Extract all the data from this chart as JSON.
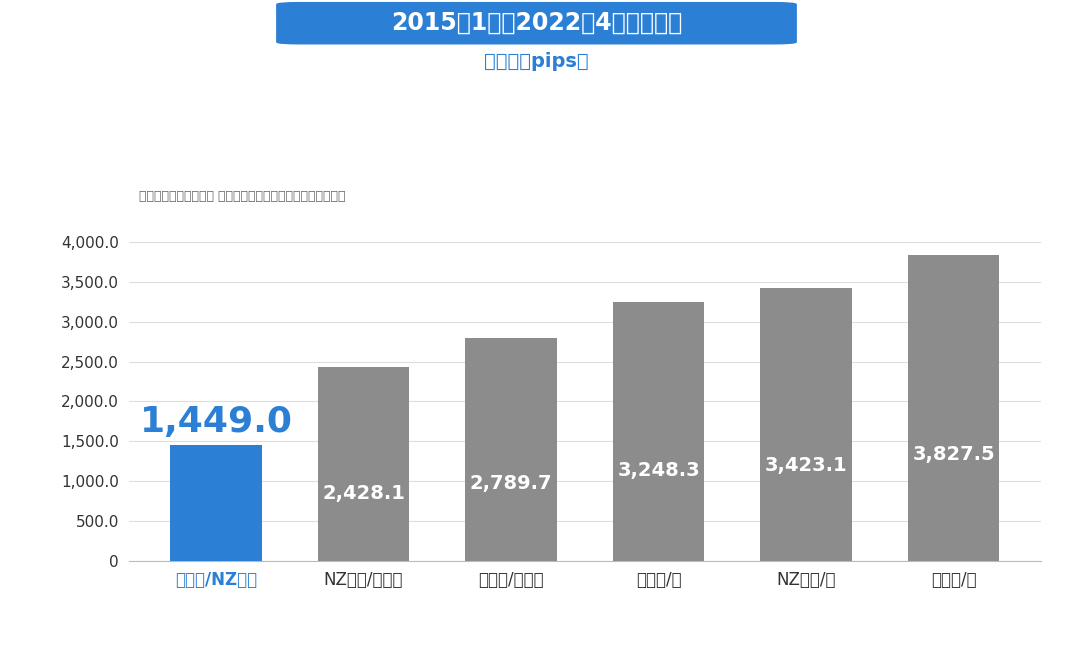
{
  "title_display": "2015年1月～2022年4月の高低差",
  "subtitle": "（単位：pips）",
  "source_note": "出所：マネースクエア ヒストリカルデータ、リフィニティブ",
  "categories": [
    "豪ドル/NZドル",
    "NZドル/米ドル",
    "豪ドル/米ドル",
    "米ドル/円",
    "NZドル/円",
    "豪ドル/円"
  ],
  "values": [
    1449.0,
    2428.1,
    2789.7,
    3248.3,
    3423.1,
    3827.5
  ],
  "bar_colors": [
    "#2b7fd4",
    "#8c8c8c",
    "#8c8c8c",
    "#8c8c8c",
    "#8c8c8c",
    "#8c8c8c"
  ],
  "highlight_index": 0,
  "ylim": [
    0,
    4200
  ],
  "yticks": [
    0,
    500.0,
    1000.0,
    1500.0,
    2000.0,
    2500.0,
    3000.0,
    3500.0,
    4000.0
  ],
  "title_bg_color": "#2b7fd4",
  "title_text_color": "#ffffff",
  "subtitle_color": "#2b7fd4",
  "highlight_bar_label_color": "#2b7fd4",
  "bar_label_color": "#ffffff",
  "source_color": "#666666",
  "bg_color": "#ffffff",
  "grid_color": "#dddddd",
  "axis_label_color": "#333333",
  "highlight_xlabel_color": "#2b7fd4",
  "normal_xlabel_color": "#333333"
}
